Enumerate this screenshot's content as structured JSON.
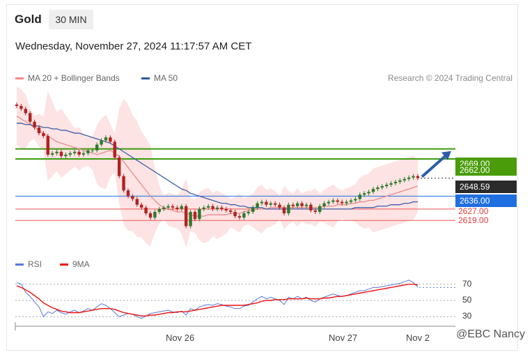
{
  "header": {
    "title": "Gold",
    "timeframe": "30 MIN",
    "datetime": "Wednesday, November 27, 2024 11:17:57 AM CET"
  },
  "legend": {
    "ma20_label": "MA 20 + Bollinger Bands",
    "ma50_label": "MA 50",
    "copyright": "Research © 2024 Trading Central",
    "rsi_label": "RSI",
    "rsi_ma_label": "9MA"
  },
  "colors": {
    "up": "#2c7a2c",
    "down": "#b22222",
    "ma20": "#e88a8a",
    "ma50": "#3a5fa8",
    "band": "#fcdada",
    "green_level": "#3d9a0f",
    "blue_level": "#1f6fe0",
    "red_level": "#ee5555",
    "price_box": "#2b2b2b",
    "rsi": "#5577dd",
    "rsi_ma": "#ee1111"
  },
  "price_labels": {
    "target": "2669.00",
    "resistance": "2662.00",
    "last": "2648.59",
    "pivot": "2636.00",
    "support1": "2627.00",
    "support2": "2619.00"
  },
  "x_axis": {
    "labels": [
      "Nov 26",
      "Nov 27",
      "Nov 2"
    ]
  },
  "rsi_ticks": [
    "70",
    "50",
    "30"
  ],
  "watermark": "@EBC Nancy",
  "chart_data": [
    {
      "type": "candlestick",
      "title": "Gold",
      "timeframe": "30 MIN",
      "ylim": [
        2605,
        2700
      ],
      "levels": [
        {
          "label": "2669.00",
          "value": 2669,
          "kind": "target"
        },
        {
          "label": "2662.00",
          "value": 2662,
          "kind": "resistance"
        },
        {
          "label": "2636.00",
          "value": 2636,
          "kind": "pivot"
        },
        {
          "label": "2627.00",
          "value": 2627,
          "kind": "support"
        },
        {
          "label": "2619.00",
          "value": 2619,
          "kind": "support"
        }
      ],
      "last_price": 2648.59,
      "close": [
        2699,
        2697,
        2694,
        2688,
        2684,
        2680,
        2678,
        2665,
        2666,
        2667,
        2664,
        2665,
        2666,
        2667,
        2665,
        2666,
        2668,
        2668,
        2672,
        2675,
        2677,
        2674,
        2663,
        2650,
        2640,
        2636,
        2634,
        2630,
        2628,
        2624,
        2621,
        2625,
        2627,
        2628,
        2629,
        2628,
        2627,
        2629,
        2615,
        2625,
        2620,
        2627,
        2628,
        2629,
        2627,
        2628,
        2627,
        2626,
        2625,
        2622,
        2621,
        2624,
        2625,
        2628,
        2631,
        2632,
        2630,
        2631,
        2630,
        2628,
        2624,
        2630,
        2629,
        2631,
        2629,
        2630,
        2626,
        2625,
        2629,
        2631,
        2632,
        2633,
        2632,
        2631,
        2632,
        2633,
        2634,
        2637,
        2638,
        2639,
        2641,
        2642,
        2643,
        2644,
        2645,
        2646,
        2647,
        2648,
        2649,
        2650,
        2648.59
      ],
      "ma20": [
        2692,
        2690,
        2688,
        2686,
        2684,
        2682,
        2680,
        2678,
        2676,
        2674,
        2673,
        2672,
        2671,
        2670,
        2669,
        2668,
        2667,
        2666,
        2665,
        2666,
        2667,
        2668,
        2666,
        2664,
        2660,
        2656,
        2652,
        2648,
        2644,
        2640,
        2636,
        2633,
        2630,
        2628,
        2627,
        2626,
        2625,
        2625,
        2624,
        2623,
        2622,
        2622,
        2622,
        2623,
        2623,
        2623,
        2623,
        2623,
        2624,
        2624,
        2624,
        2625,
        2626,
        2626,
        2627,
        2627,
        2627,
        2628,
        2628,
        2628,
        2628,
        2628,
        2628,
        2628,
        2628,
        2628,
        2628,
        2628,
        2628,
        2629,
        2629,
        2629,
        2630,
        2630,
        2630,
        2631,
        2631,
        2632,
        2632,
        2633,
        2633,
        2634,
        2635,
        2636,
        2637,
        2638,
        2639,
        2640,
        2641,
        2642,
        2643
      ],
      "ma50": [
        2687,
        2687,
        2686,
        2686,
        2685,
        2685,
        2684,
        2684,
        2683,
        2683,
        2682,
        2682,
        2681,
        2680,
        2680,
        2679,
        2678,
        2677,
        2676,
        2675,
        2674,
        2673,
        2671,
        2669,
        2667,
        2665,
        2663,
        2661,
        2659,
        2657,
        2655,
        2653,
        2651,
        2649,
        2647,
        2645,
        2643,
        2641,
        2640,
        2638,
        2637,
        2636,
        2635,
        2634,
        2633,
        2632,
        2631,
        2631,
        2630,
        2630,
        2629,
        2629,
        2628,
        2628,
        2628,
        2628,
        2627,
        2627,
        2627,
        2627,
        2627,
        2627,
        2627,
        2627,
        2627,
        2627,
        2627,
        2627,
        2627,
        2627,
        2627,
        2627,
        2627,
        2627,
        2627,
        2627,
        2628,
        2628,
        2628,
        2628,
        2628,
        2629,
        2629,
        2629,
        2630,
        2630,
        2630,
        2631,
        2631,
        2632,
        2632
      ]
    },
    {
      "type": "line",
      "title": "RSI",
      "ylim": [
        20,
        80
      ],
      "ticks": [
        70,
        50,
        30
      ],
      "series": [
        {
          "name": "RSI",
          "values": [
            72,
            70,
            60,
            55,
            48,
            42,
            30,
            36,
            34,
            38,
            35,
            33,
            36,
            38,
            35,
            37,
            40,
            38,
            42,
            46,
            44,
            40,
            35,
            30,
            32,
            34,
            33,
            30,
            28,
            31,
            34,
            35,
            36,
            37,
            38,
            36,
            35,
            37,
            32,
            40,
            38,
            42,
            44,
            45,
            44,
            46,
            45,
            43,
            42,
            40,
            40,
            43,
            44,
            48,
            52,
            55,
            52,
            54,
            52,
            50,
            45,
            54,
            52,
            55,
            52,
            54,
            50,
            48,
            52,
            54,
            56,
            58,
            56,
            55,
            56,
            58,
            60,
            62,
            62,
            64,
            66,
            66,
            67,
            68,
            69,
            70,
            71,
            73,
            75,
            72,
            66
          ]
        },
        {
          "name": "9MA",
          "values": [
            68,
            66,
            63,
            60,
            56,
            52,
            47,
            44,
            41,
            39,
            37,
            36,
            35,
            35,
            35,
            36,
            37,
            38,
            39,
            40,
            40,
            40,
            39,
            37,
            35,
            34,
            33,
            32,
            31,
            31,
            32,
            32,
            33,
            34,
            35,
            35,
            36,
            36,
            36,
            37,
            38,
            39,
            40,
            41,
            42,
            43,
            44,
            44,
            44,
            44,
            44,
            44,
            45,
            46,
            47,
            49,
            50,
            50,
            51,
            51,
            51,
            52,
            52,
            52,
            52,
            53,
            52,
            52,
            52,
            53,
            53,
            54,
            55,
            55,
            56,
            57,
            58,
            59,
            60,
            61,
            62,
            63,
            64,
            65,
            66,
            67,
            68,
            69,
            70,
            70,
            69
          ]
        }
      ]
    }
  ]
}
